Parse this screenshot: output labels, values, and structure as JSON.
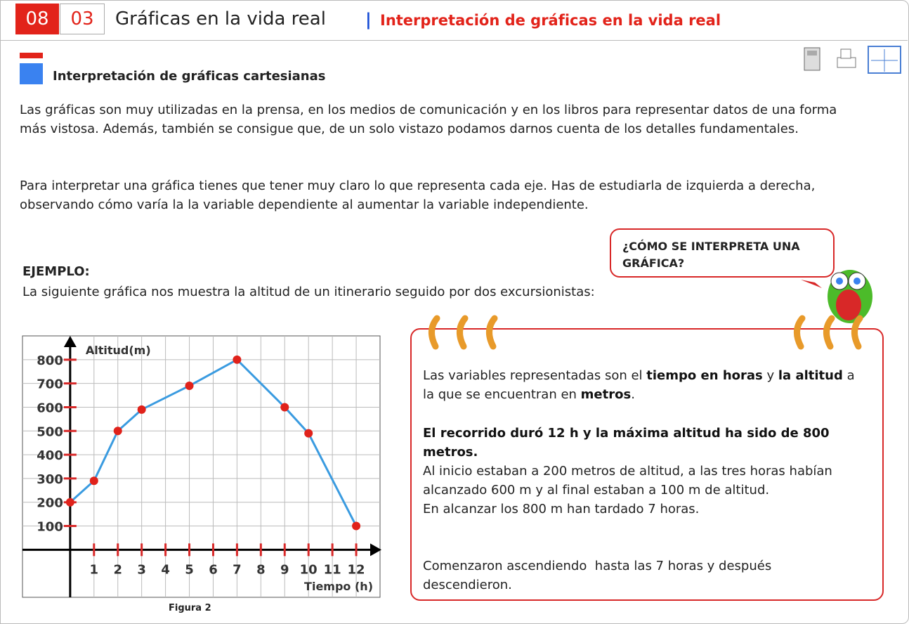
{
  "header": {
    "chapter": "08",
    "section": "03",
    "title": "Gráficas en la vida real",
    "subtitle": "Interpretación de gráficas en la vida real"
  },
  "heading": "Interpretación de gráficas cartesianas",
  "paragraphs": [
    "Las gráficas son muy utilizadas en la prensa, en los medios de comunicación y en los libros para representar datos de una forma más vistosa. Además, también se consigue que, de un solo vistazo podamos darnos cuenta de los detalles fundamentales.",
    "Para interpretar una gráfica tienes que tener muy claro lo que representa cada eje. Has de estudiarla de izquierda a derecha, observando cómo varía la la variable dependiente al aumentar la variable independiente."
  ],
  "bubble": "¿CÓMO SE INTERPRETA UNA GRÁFICA?",
  "example": {
    "label": "EJEMPLO:",
    "text": "La siguiente gráfica nos muestra la altitud de un itinerario seguido por dos excursionistas:"
  },
  "caption": "Figura 2",
  "notes": [
    [
      "Las variables representadas son el ",
      "tiempo en horas",
      " y ",
      "la altitud",
      " a la que se encuentran en ",
      "metros",
      "."
    ],
    [
      "El recorrido duró 12 h y la máxima altitud ha sido de 800 metros.",
      "Al inicio estaban a 200 metros de altitud, a las tres horas habían alcanzado 600 m y al final estaban a 100 m de altitud.",
      "En alcanzar los 800 m han tardado 7 horas."
    ],
    [
      "Comenzaron ascendiendo  hasta las 7 horas y después descendieron."
    ]
  ],
  "chart_data": {
    "type": "line",
    "x_label": "Tiempo (h)",
    "y_label": "Altitud(m)",
    "x": [
      0,
      1,
      2,
      3,
      5,
      7,
      9,
      10,
      12
    ],
    "values": [
      200,
      290,
      500,
      590,
      690,
      800,
      600,
      490,
      100
    ],
    "color": "#3a9be0",
    "marker_color": "#e0221b",
    "xlim": [
      -2,
      13
    ],
    "ylim": [
      -200,
      900
    ],
    "xticks": [
      1,
      2,
      3,
      4,
      5,
      6,
      7,
      8,
      9,
      10,
      11,
      12
    ],
    "yticks": [
      100,
      200,
      300,
      400,
      500,
      600,
      700,
      800
    ],
    "grid": true
  }
}
